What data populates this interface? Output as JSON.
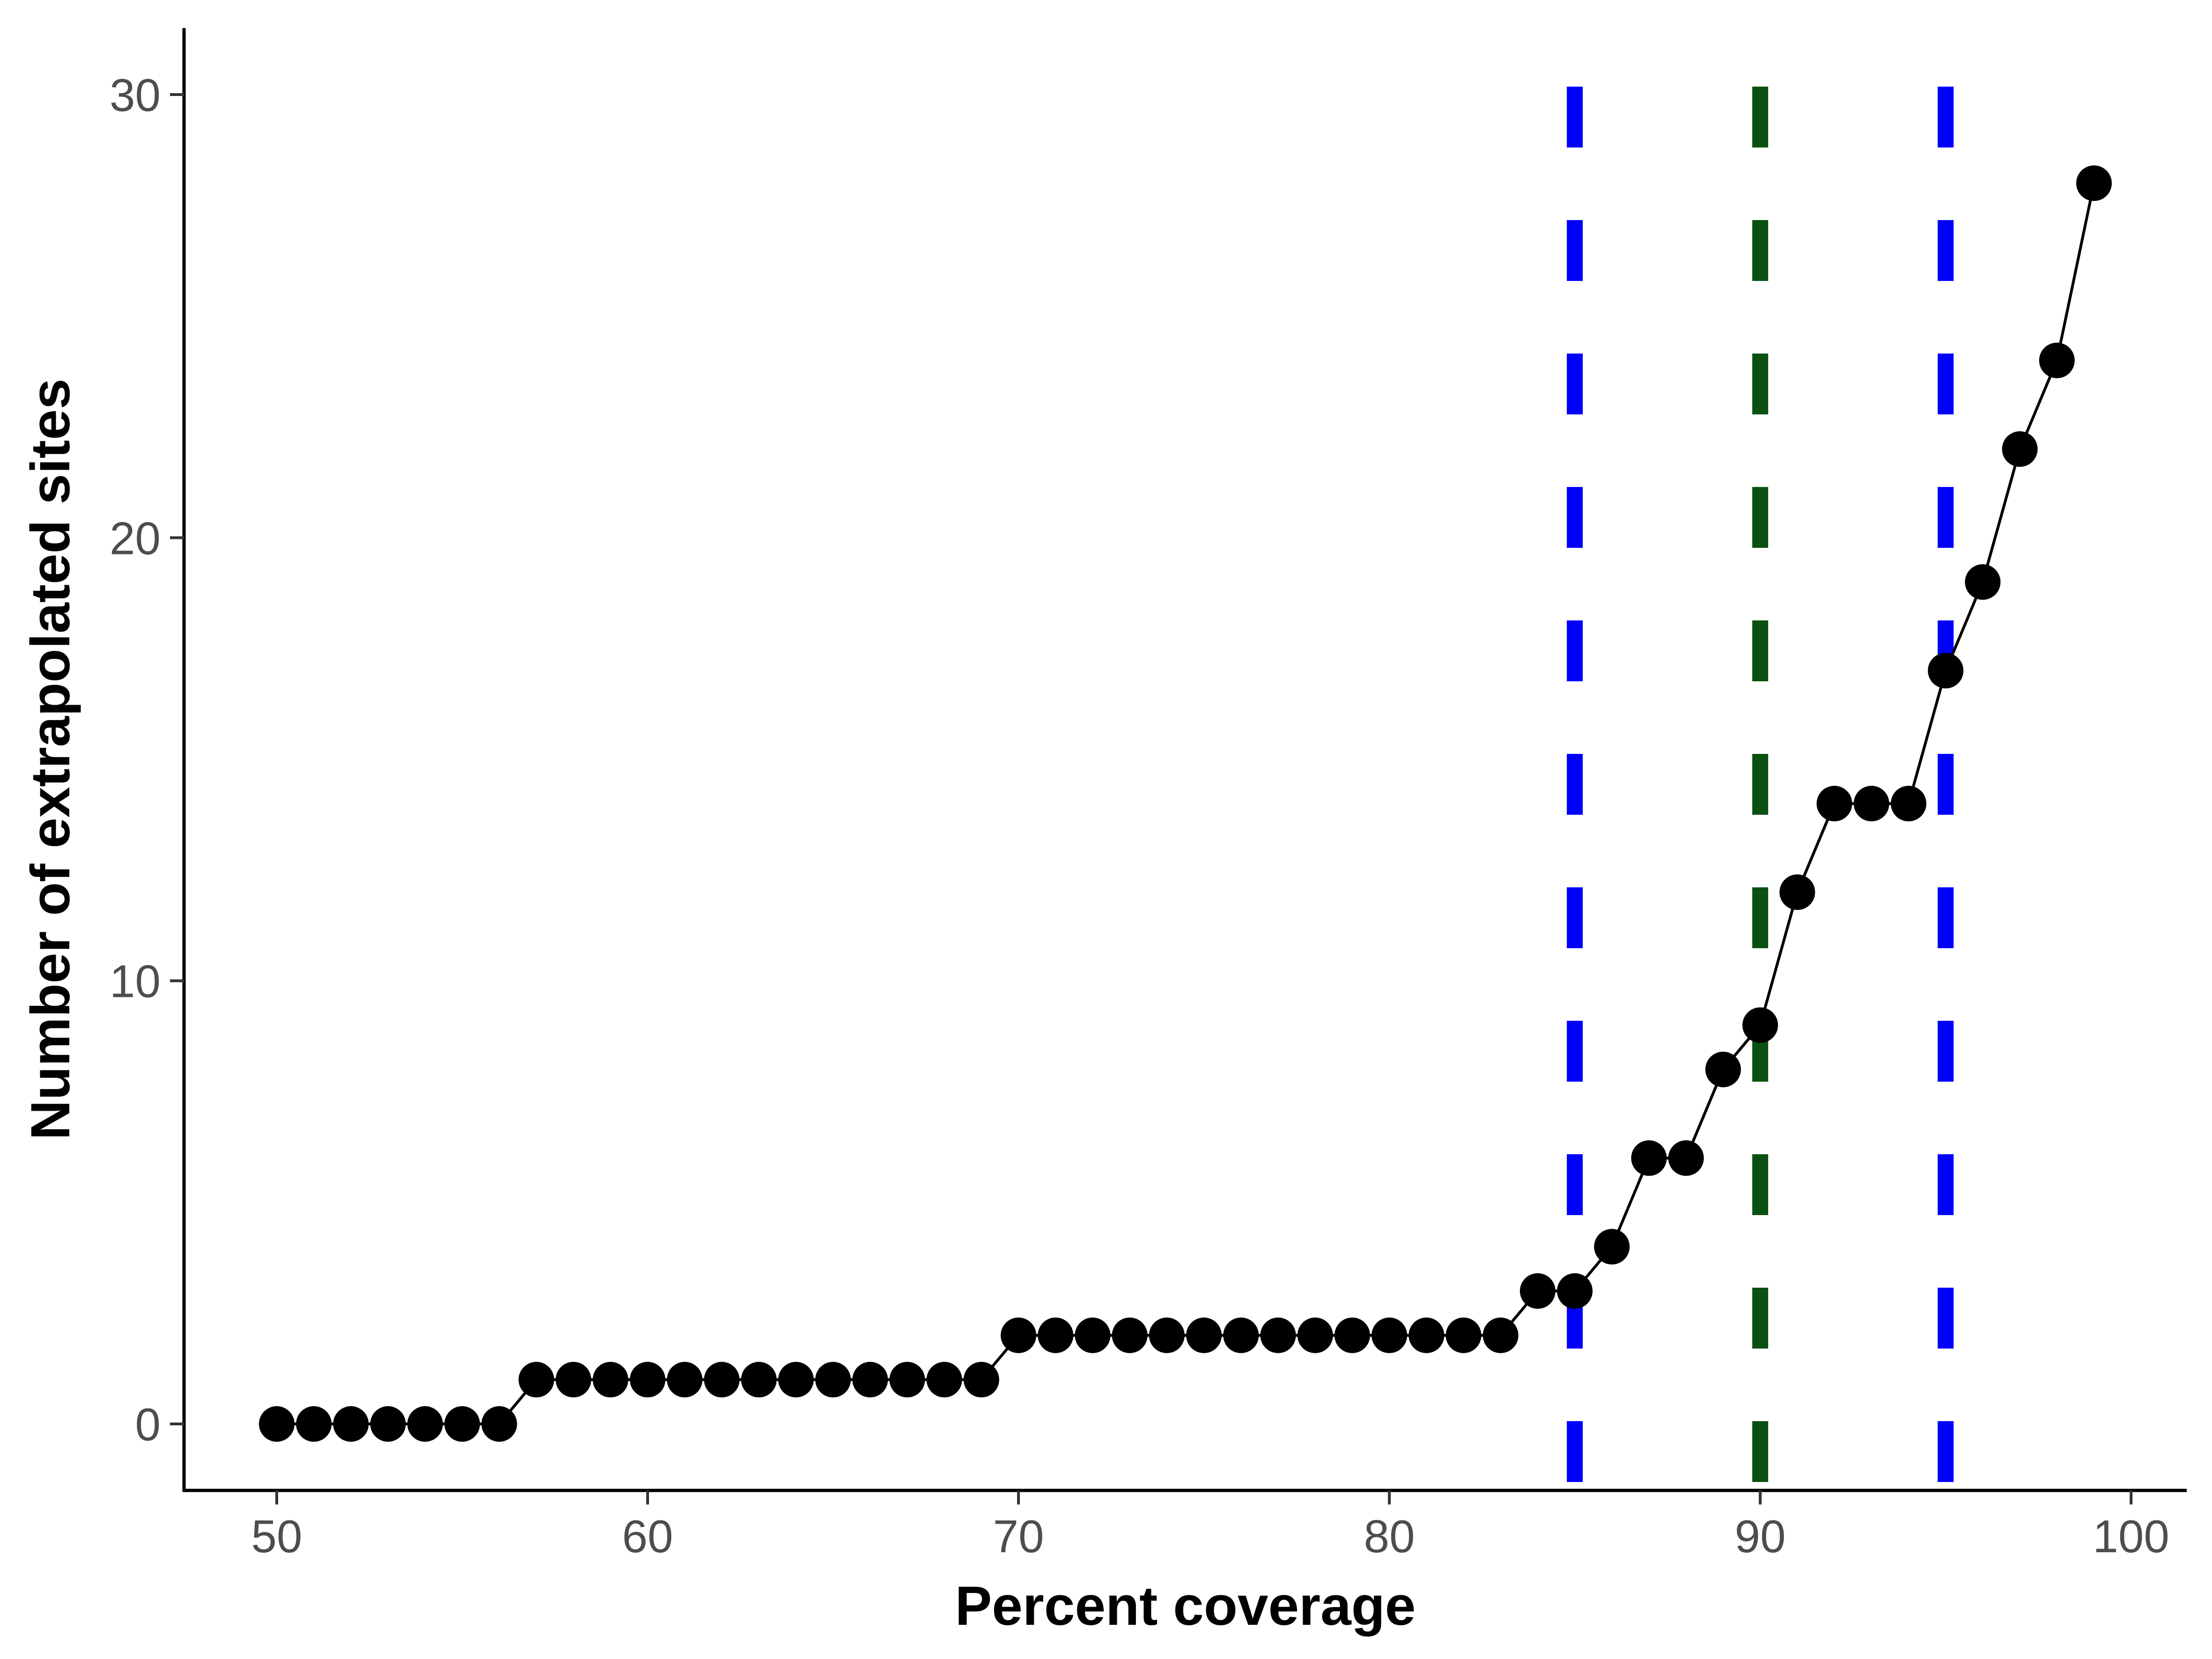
{
  "chart_data": {
    "type": "scatter",
    "title": "",
    "xlabel": "Percent coverage",
    "ylabel": "Number of extrapolated sites",
    "xlim": [
      47.5,
      101.5
    ],
    "ylim": [
      -1.5,
      31.5
    ],
    "x_ticks": [
      50,
      60,
      70,
      80,
      90,
      100
    ],
    "y_ticks": [
      0,
      10,
      20,
      30
    ],
    "x_tick_labels": [
      "50",
      "60",
      "70",
      "80",
      "90",
      "100"
    ],
    "y_tick_labels": [
      "0",
      "10",
      "20",
      "30"
    ],
    "grid": false,
    "legend": "none",
    "series": [
      {
        "color": "#000000",
        "style": "line-and-points",
        "x": [
          50,
          51,
          52,
          53,
          54,
          55,
          56,
          57,
          58,
          59,
          60,
          61,
          62,
          63,
          64,
          65,
          66,
          67,
          68,
          69,
          70,
          71,
          72,
          73,
          74,
          75,
          76,
          77,
          78,
          79,
          80,
          81,
          82,
          83,
          84,
          85,
          86,
          87,
          88,
          89,
          90,
          91,
          92,
          93,
          94,
          95,
          96,
          97,
          98,
          99
        ],
        "y": [
          0,
          0,
          0,
          0,
          0,
          0,
          0,
          1,
          1,
          1,
          1,
          1,
          1,
          1,
          1,
          1,
          1,
          1,
          1,
          1,
          2,
          2,
          2,
          2,
          2,
          2,
          2,
          2,
          2,
          2,
          2,
          2,
          2,
          2,
          3,
          3,
          4,
          6,
          6,
          8,
          9,
          12,
          14,
          14,
          14,
          17,
          19,
          22,
          24,
          28
        ]
      }
    ],
    "vlines": [
      {
        "x": 85,
        "color": "#0000ff",
        "style": "dashed"
      },
      {
        "x": 90,
        "color": "#0a5010",
        "style": "dashed"
      },
      {
        "x": 95,
        "color": "#0000ff",
        "style": "dashed"
      }
    ]
  }
}
